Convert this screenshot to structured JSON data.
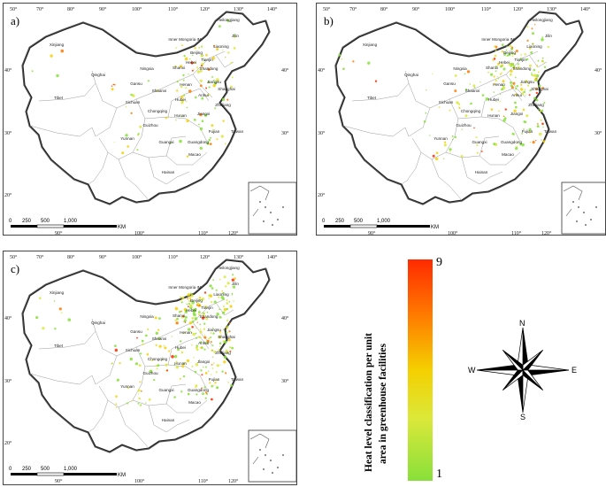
{
  "panels": [
    {
      "id": "a",
      "label": "a)"
    },
    {
      "id": "b",
      "label": "b)"
    },
    {
      "id": "c",
      "label": "c)"
    }
  ],
  "graticule": {
    "top": [
      "50°",
      "70°",
      "80°",
      "90°",
      "100°",
      "110°",
      "120°",
      "130°",
      "140°"
    ],
    "left": [
      "40°",
      "30°",
      "20°"
    ],
    "right": [
      "40°",
      "30°",
      "20°"
    ],
    "bottom": [
      "90°",
      "100°",
      "110°",
      "120°"
    ]
  },
  "provinces": [
    "Heilongjiang",
    "Jilin",
    "Liaoning",
    "Inner Mongoria IM",
    "Beijing",
    "Hebei",
    "Shanxi",
    "Shandong",
    "Tianjin",
    "Xinjiang",
    "Qinghai",
    "Tibet",
    "Ningxia",
    "Gansu",
    "Shaanxi",
    "Henan",
    "Jiangsu",
    "Anhui",
    "Shanghai",
    "Hubei",
    "Sichuan",
    "Chongqing",
    "Hunan",
    "Jiangxi",
    "Zhejiang",
    "Guizhou",
    "Fujian",
    "Taiwan",
    "Yunnan",
    "Guangxi",
    "Guangdong",
    "Macao",
    "Hainan"
  ],
  "scale_bar": {
    "labels": [
      "0",
      "250",
      "500",
      "1,000"
    ],
    "unit": "KM"
  },
  "legend": {
    "title_line1": "Heat level classification per unit",
    "title_line2": "area in greenhouse facilities",
    "max": "9",
    "min": "1",
    "colors": [
      "#ff2a00",
      "#ff7a00",
      "#f4d000",
      "#dbe83a",
      "#88e03a"
    ]
  },
  "compass": {
    "n": "N",
    "s": "S",
    "e": "E",
    "w": "W"
  }
}
